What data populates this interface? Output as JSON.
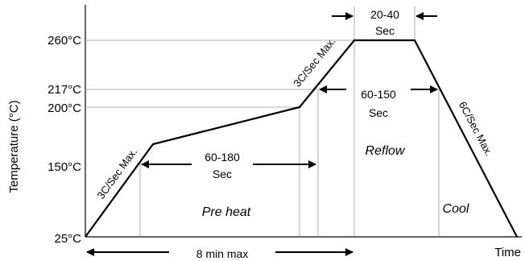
{
  "diagram": {
    "y_axis_title": "Temperature  (°C)",
    "x_axis_title": "Time",
    "temperature_ticks": [
      "260°C",
      "217°C",
      "200°C",
      "150°C",
      "25°C"
    ],
    "slope_labels": {
      "preheat_ramp": "3C/Sec Max.",
      "reflow_ramp": "3C/Sec Max.",
      "cooling": "6C/Sec Max."
    },
    "intervals": {
      "peak_top": "20-40",
      "peak_bottom": "Sec",
      "above_liquidus_top": "60-150",
      "above_liquidus_bottom": "Sec",
      "preheat_top": "60-180",
      "preheat_bottom": "Sec",
      "total": "8 min max"
    },
    "zones": {
      "preheat": "Pre heat",
      "reflow": "Reflow",
      "cool": "Cool"
    }
  }
}
